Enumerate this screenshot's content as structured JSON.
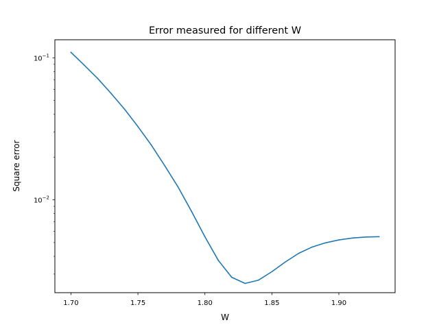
{
  "chart_data": {
    "type": "line",
    "title": "Error measured for different W",
    "xlabel": "W",
    "ylabel": "Square error",
    "xlim": [
      1.688,
      1.942
    ],
    "ylim": [
      0.00222,
      0.134
    ],
    "yscale": "log",
    "grid": false,
    "x_ticks": [
      {
        "value": 1.7,
        "label": "1.70"
      },
      {
        "value": 1.75,
        "label": "1.75"
      },
      {
        "value": 1.8,
        "label": "1.80"
      },
      {
        "value": 1.85,
        "label": "1.85"
      },
      {
        "value": 1.9,
        "label": "1.90"
      }
    ],
    "y_ticks": [
      {
        "value": 0.01,
        "label": "10",
        "exp": "−2"
      },
      {
        "value": 0.1,
        "label": "10",
        "exp": "−1"
      }
    ],
    "series": [
      {
        "color": "#1f77b4",
        "x": [
          1.7,
          1.71,
          1.72,
          1.73,
          1.74,
          1.75,
          1.76,
          1.77,
          1.78,
          1.79,
          1.8,
          1.81,
          1.82,
          1.83,
          1.84,
          1.85,
          1.86,
          1.87,
          1.88,
          1.89,
          1.9,
          1.91,
          1.92,
          1.93
        ],
        "y": [
          0.1093,
          0.0886,
          0.0715,
          0.0561,
          0.0435,
          0.0328,
          0.0243,
          0.0174,
          0.0123,
          0.0083,
          0.0055,
          0.00375,
          0.00285,
          0.00258,
          0.00272,
          0.00312,
          0.00365,
          0.0042,
          0.00465,
          0.00498,
          0.00522,
          0.00538,
          0.00547,
          0.0055
        ]
      }
    ]
  }
}
